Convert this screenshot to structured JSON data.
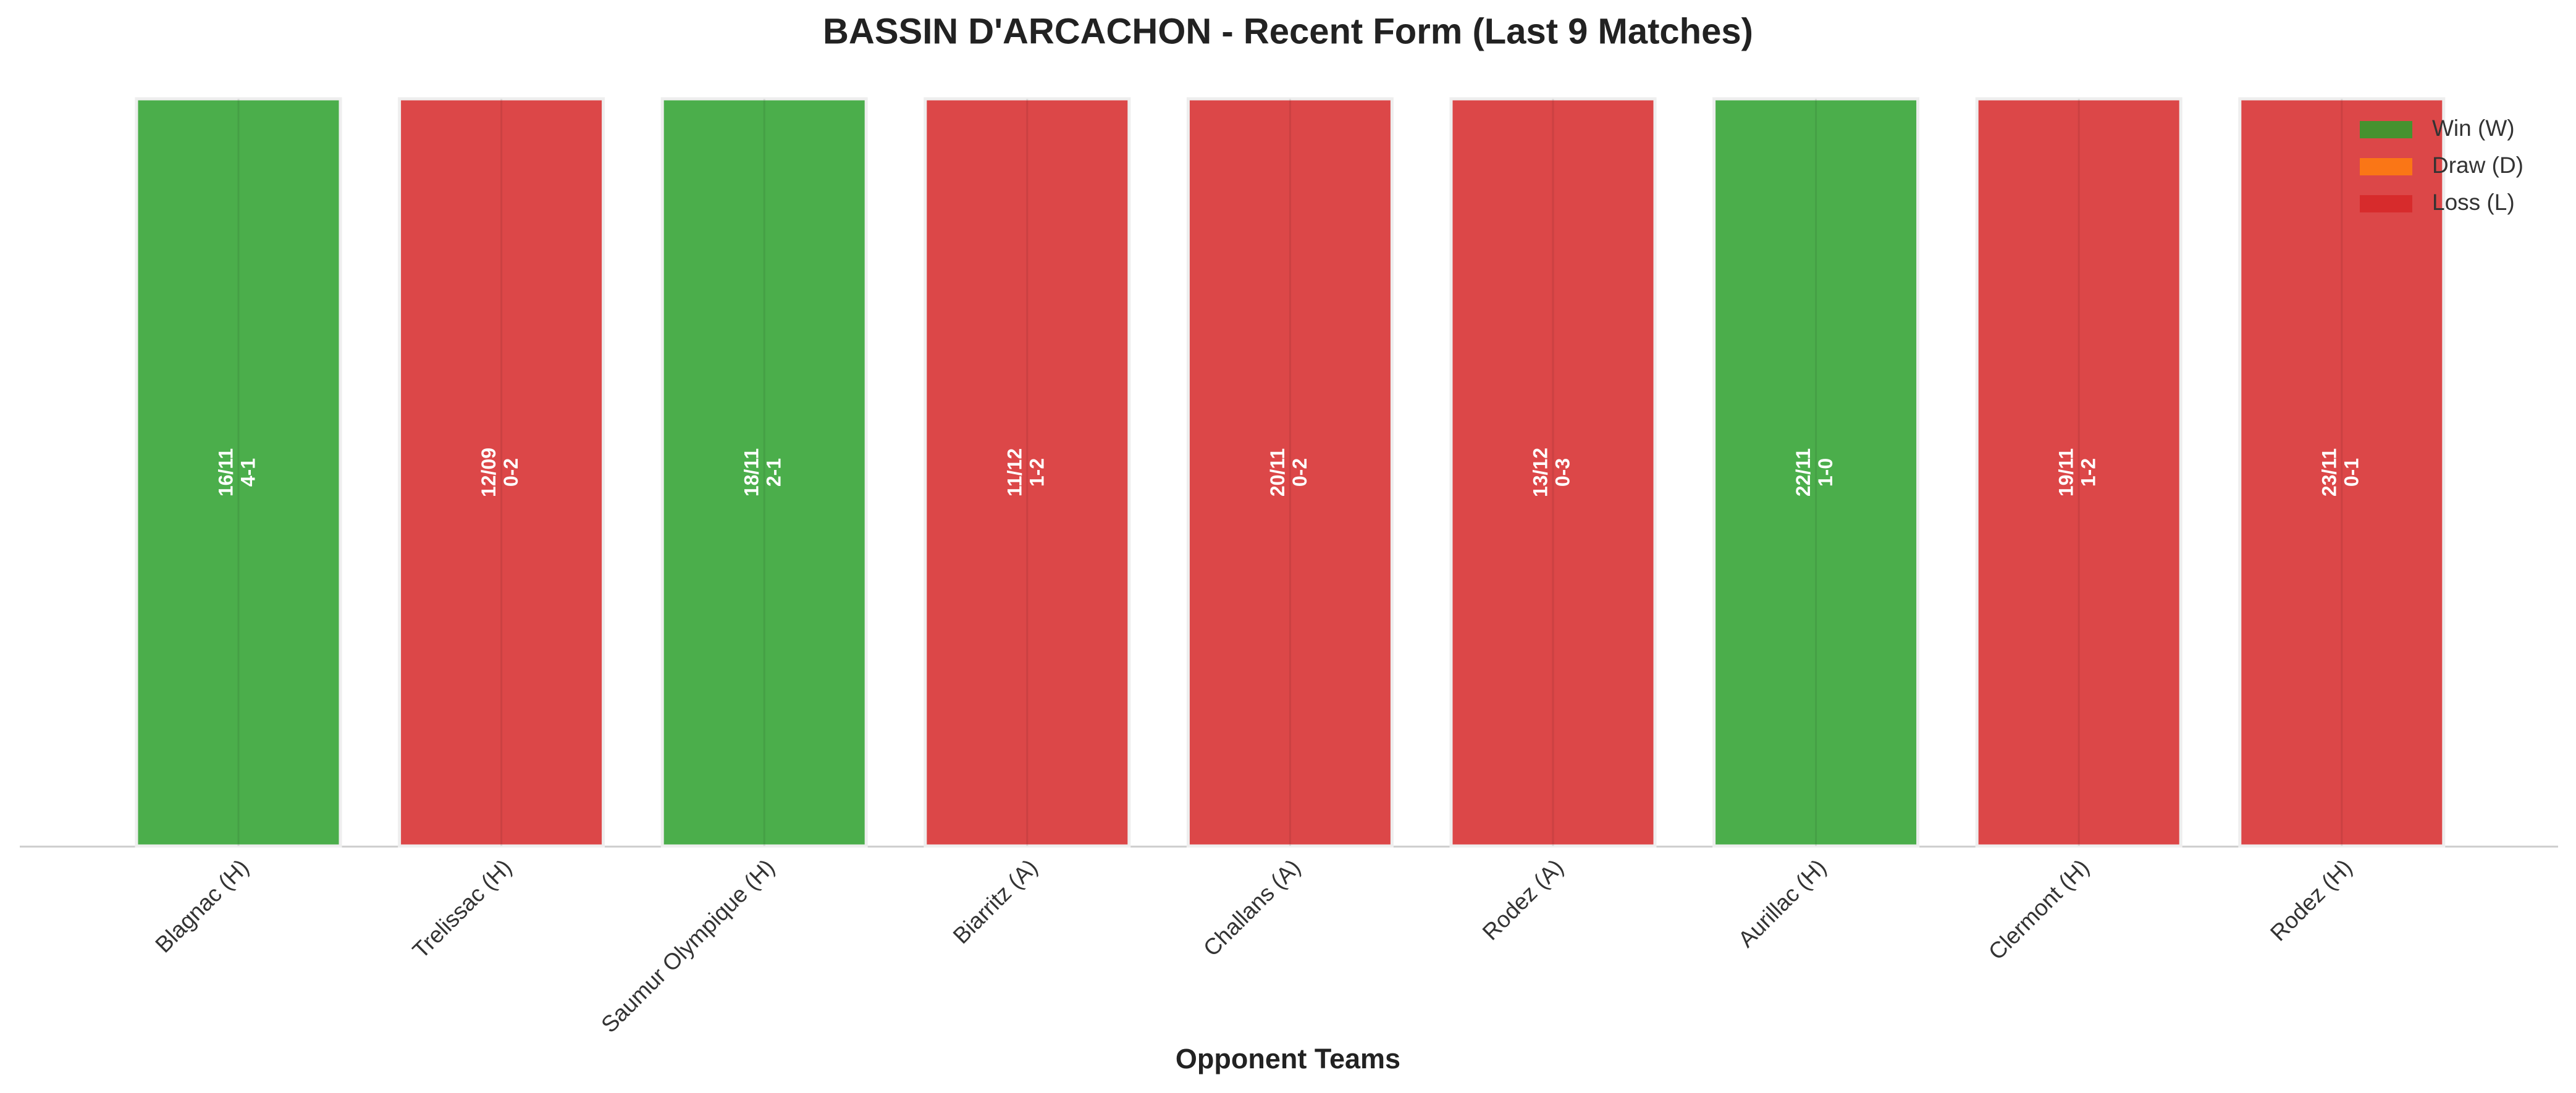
{
  "chart_data": {
    "type": "bar",
    "title": "BASSIN D'ARCACHON - Recent Form (Last 9 Matches)",
    "xlabel": "Opponent Teams",
    "categories": [
      "Blagnac (H)",
      "Trelissac (H)",
      "Saumur Olympique (H)",
      "Biarritz (A)",
      "Challans (A)",
      "Rodez (A)",
      "Aurillac (H)",
      "Clermont (H)",
      "Rodez (H)"
    ],
    "dates": [
      "16/11",
      "12/09",
      "18/11",
      "11/12",
      "20/11",
      "13/12",
      "22/11",
      "19/11",
      "23/11"
    ],
    "scores": [
      "4-1",
      "0-2",
      "2-1",
      "1-2",
      "0-2",
      "0-3",
      "1-0",
      "1-2",
      "0-1"
    ],
    "colors": [
      "#2ca02c",
      "#d62728",
      "#2ca02c",
      "#d62728",
      "#d62728",
      "#d62728",
      "#2ca02c",
      "#d62728",
      "#d62728"
    ],
    "legend": [
      {
        "name": "Win (W)",
        "color": "#2ca02c"
      },
      {
        "name": "Draw (D)",
        "color": "#ff7f0e"
      },
      {
        "name": "Loss (L)",
        "color": "#d62728"
      }
    ],
    "legend_position": "upper right"
  }
}
